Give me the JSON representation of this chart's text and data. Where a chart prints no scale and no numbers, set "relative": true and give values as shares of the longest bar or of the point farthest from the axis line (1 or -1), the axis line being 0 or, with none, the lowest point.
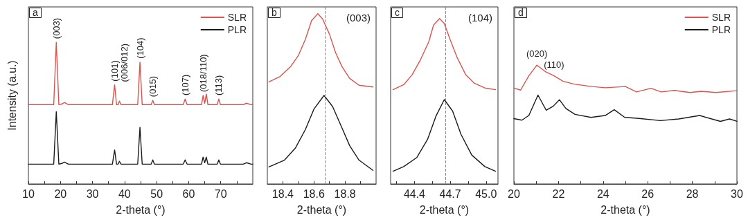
{
  "chart_data": [
    {
      "type": "line",
      "title": "a",
      "xlabel": "2-theta (°)",
      "ylabel": "Intensity (a.u.)",
      "relative": true,
      "legend": "top right",
      "xlim": [
        10,
        80
      ],
      "xticks": [
        10,
        20,
        30,
        40,
        50,
        60,
        70,
        {
          "value": 15,
          "label": null
        },
        {
          "value": 25,
          "label": null
        },
        {
          "value": 35,
          "label": null
        },
        {
          "value": 45,
          "label": null
        },
        {
          "value": 55,
          "label": null
        },
        {
          "value": 65,
          "label": null
        },
        {
          "value": 75,
          "label": null
        }
      ],
      "x": [
        10,
        17.9,
        18.7,
        19.5,
        20.5,
        21.2,
        22.5,
        36.2,
        36.9,
        37.5,
        38.0,
        38.4,
        38.9,
        44.1,
        44.8,
        45.5,
        48.3,
        48.8,
        49.3,
        58.3,
        58.9,
        59.5,
        64.0,
        64.5,
        65.0,
        65.5,
        66.0,
        68.9,
        69.4,
        69.9,
        77,
        78,
        79.5,
        80
      ],
      "series": [
        {
          "name": "SLR",
          "color": "#d9534f",
          "values": [
            0.56,
            0.56,
            1.0,
            0.56,
            0.565,
            0.575,
            0.56,
            0.56,
            0.7,
            0.56,
            0.56,
            0.585,
            0.56,
            0.56,
            0.86,
            0.56,
            0.56,
            0.59,
            0.56,
            0.56,
            0.6,
            0.56,
            0.56,
            0.625,
            0.57,
            0.635,
            0.56,
            0.56,
            0.6,
            0.56,
            0.56,
            0.57,
            0.56,
            0.56
          ]
        },
        {
          "name": "PLR",
          "color": "#1a1a1a",
          "values": [
            0.14,
            0.14,
            0.51,
            0.14,
            0.145,
            0.155,
            0.14,
            0.14,
            0.24,
            0.14,
            0.14,
            0.16,
            0.14,
            0.14,
            0.4,
            0.14,
            0.14,
            0.17,
            0.14,
            0.14,
            0.17,
            0.14,
            0.14,
            0.19,
            0.15,
            0.19,
            0.14,
            0.14,
            0.17,
            0.14,
            0.14,
            0.15,
            0.14,
            0.14
          ]
        }
      ],
      "annotations": [
        {
          "text": "(003)",
          "x": 18.7,
          "y": 1.0
        },
        {
          "text": "(101)",
          "x": 36.9,
          "y": 0.7
        },
        {
          "text": "(006/012)",
          "x": 38.4,
          "y": 0.585
        },
        {
          "text": "(104)",
          "x": 44.8,
          "y": 0.86
        },
        {
          "text": "(015)",
          "x": 48.8,
          "y": 0.59
        },
        {
          "text": "(107)",
          "x": 58.9,
          "y": 0.6
        },
        {
          "text": "(018/110)",
          "x": 64.5,
          "y": 0.625
        },
        {
          "text": "(113)",
          "x": 69.4,
          "y": 0.6
        }
      ]
    },
    {
      "type": "line",
      "title": "b",
      "xlabel": "2-theta (°)",
      "relative": true,
      "xlim": [
        18.3,
        19.0
      ],
      "xticks": [
        18.4,
        18.6,
        18.8,
        {
          "value": 18.5,
          "label": null
        },
        {
          "value": 18.7,
          "label": null
        },
        {
          "value": 18.9,
          "label": null
        }
      ],
      "series": [
        {
          "color": "#d9534f",
          "x": [
            18.31,
            18.38,
            18.45,
            18.5,
            18.545,
            18.585,
            18.625,
            18.655,
            18.7,
            18.74,
            18.78,
            18.83,
            18.89,
            18.98
          ],
          "values": [
            0.6,
            0.63,
            0.69,
            0.755,
            0.85,
            0.96,
            1.0,
            0.97,
            0.88,
            0.77,
            0.69,
            0.62,
            0.58,
            0.57
          ]
        },
        {
          "color": "#1a1a1a",
          "x": [
            18.31,
            18.41,
            18.48,
            18.545,
            18.6,
            18.665,
            18.72,
            18.78,
            18.83,
            18.89,
            18.98
          ],
          "values": [
            0.1,
            0.14,
            0.21,
            0.32,
            0.44,
            0.52,
            0.455,
            0.33,
            0.225,
            0.14,
            0.08
          ]
        }
      ],
      "ref_lines": [
        {
          "axis": "x",
          "value": 18.67,
          "color": "#888888",
          "line_style": "dashed"
        }
      ],
      "annotations": [
        "(003)"
      ]
    },
    {
      "type": "line",
      "title": "c",
      "xlabel": "2-theta (°)",
      "relative": true,
      "xlim": [
        44.2,
        45.1
      ],
      "xticks": [
        44.4,
        44.7,
        {
          "value": 45.0,
          "label": "45.0"
        },
        {
          "value": 44.25,
          "label": null
        },
        {
          "value": 44.55,
          "label": null
        },
        {
          "value": 44.85,
          "label": null
        }
      ],
      "series": [
        {
          "color": "#d9534f",
          "x": [
            44.22,
            44.31,
            44.38,
            44.45,
            44.52,
            44.56,
            44.61,
            44.65,
            44.7,
            44.76,
            44.83,
            44.9,
            44.99,
            45.08
          ],
          "values": [
            0.57,
            0.6,
            0.66,
            0.75,
            0.86,
            0.96,
            1.0,
            0.97,
            0.87,
            0.76,
            0.66,
            0.61,
            0.58,
            0.57
          ]
        },
        {
          "color": "#1a1a1a",
          "x": [
            44.22,
            44.31,
            44.42,
            44.51,
            44.58,
            44.65,
            44.72,
            44.79,
            44.88,
            44.99,
            45.08
          ],
          "values": [
            0.077,
            0.105,
            0.16,
            0.27,
            0.41,
            0.51,
            0.44,
            0.3,
            0.175,
            0.105,
            0.077
          ]
        }
      ],
      "ref_lines": [
        {
          "axis": "x",
          "value": 44.66,
          "color": "#888888",
          "line_style": "dashed"
        }
      ],
      "annotations": [
        "(104)"
      ]
    },
    {
      "type": "line",
      "title": "d",
      "xlabel": "2-theta (°)",
      "relative": true,
      "legend": "top right",
      "xlim": [
        20,
        30
      ],
      "xticks": [
        20,
        22,
        24,
        26,
        28,
        30,
        {
          "value": 21,
          "label": null
        },
        {
          "value": 23,
          "label": null
        },
        {
          "value": 25,
          "label": null
        },
        {
          "value": 27,
          "label": null
        },
        {
          "value": 29,
          "label": null
        }
      ],
      "series": [
        {
          "name": "SLR",
          "color": "#d9534f",
          "x": [
            20.0,
            20.3,
            20.67,
            21.03,
            21.4,
            21.8,
            22.2,
            22.7,
            23.5,
            24.1,
            25.0,
            25.5,
            26.15,
            26.6,
            27.2,
            27.9,
            28.4,
            29.05,
            30.0
          ],
          "values": [
            0.807,
            0.79,
            0.91,
            1.0,
            0.947,
            0.91,
            0.865,
            0.84,
            0.82,
            0.81,
            0.82,
            0.775,
            0.805,
            0.775,
            0.787,
            0.77,
            0.78,
            0.77,
            0.785
          ]
        },
        {
          "name": "PLR",
          "color": "#1a1a1a",
          "x": [
            20.0,
            20.36,
            20.67,
            21.08,
            21.45,
            21.76,
            22.04,
            22.33,
            22.74,
            23.46,
            24.09,
            24.5,
            24.97,
            25.53,
            26.57,
            27.39,
            28.33,
            29.26,
            29.67,
            30.0
          ],
          "values": [
            0.55,
            0.537,
            0.576,
            0.748,
            0.62,
            0.654,
            0.709,
            0.635,
            0.586,
            0.56,
            0.576,
            0.625,
            0.56,
            0.553,
            0.533,
            0.547,
            0.576,
            0.527,
            0.547,
            0.527
          ]
        }
      ],
      "annotations": [
        {
          "text": "(020)",
          "x": 21.03,
          "y": 1.0
        },
        {
          "text": "(110)",
          "x": 21.8,
          "y": 0.91
        }
      ]
    }
  ]
}
